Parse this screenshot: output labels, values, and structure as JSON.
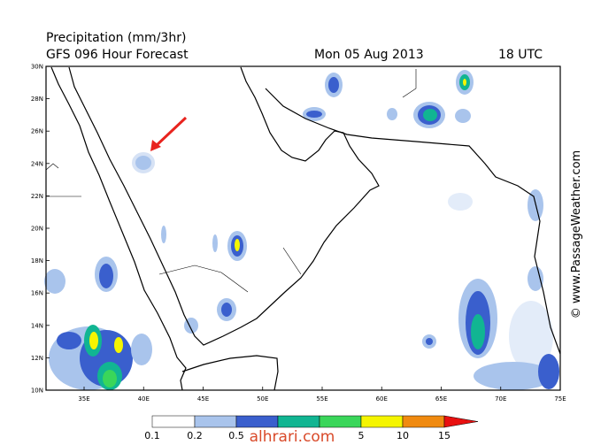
{
  "header": {
    "title": "Precipitation (mm/3hr)",
    "subtitle": "GFS 096 Hour Forecast",
    "date": "Mon 05 Aug 2013",
    "time": "18 UTC"
  },
  "lat_labels": [
    "30N",
    "28N",
    "26N",
    "24N",
    "22N",
    "20N",
    "18N",
    "16N",
    "14N",
    "12N",
    "10N"
  ],
  "lon_labels": [
    "35E",
    "40E",
    "45E",
    "50E",
    "55E",
    "60E",
    "65E",
    "70E",
    "75E"
  ],
  "legend": {
    "labels": [
      "0.1",
      "0.2",
      "0.5",
      "5",
      "10",
      "15"
    ]
  },
  "credit": "© www.PassageWeather.com",
  "watermark": "alhrari.com"
}
